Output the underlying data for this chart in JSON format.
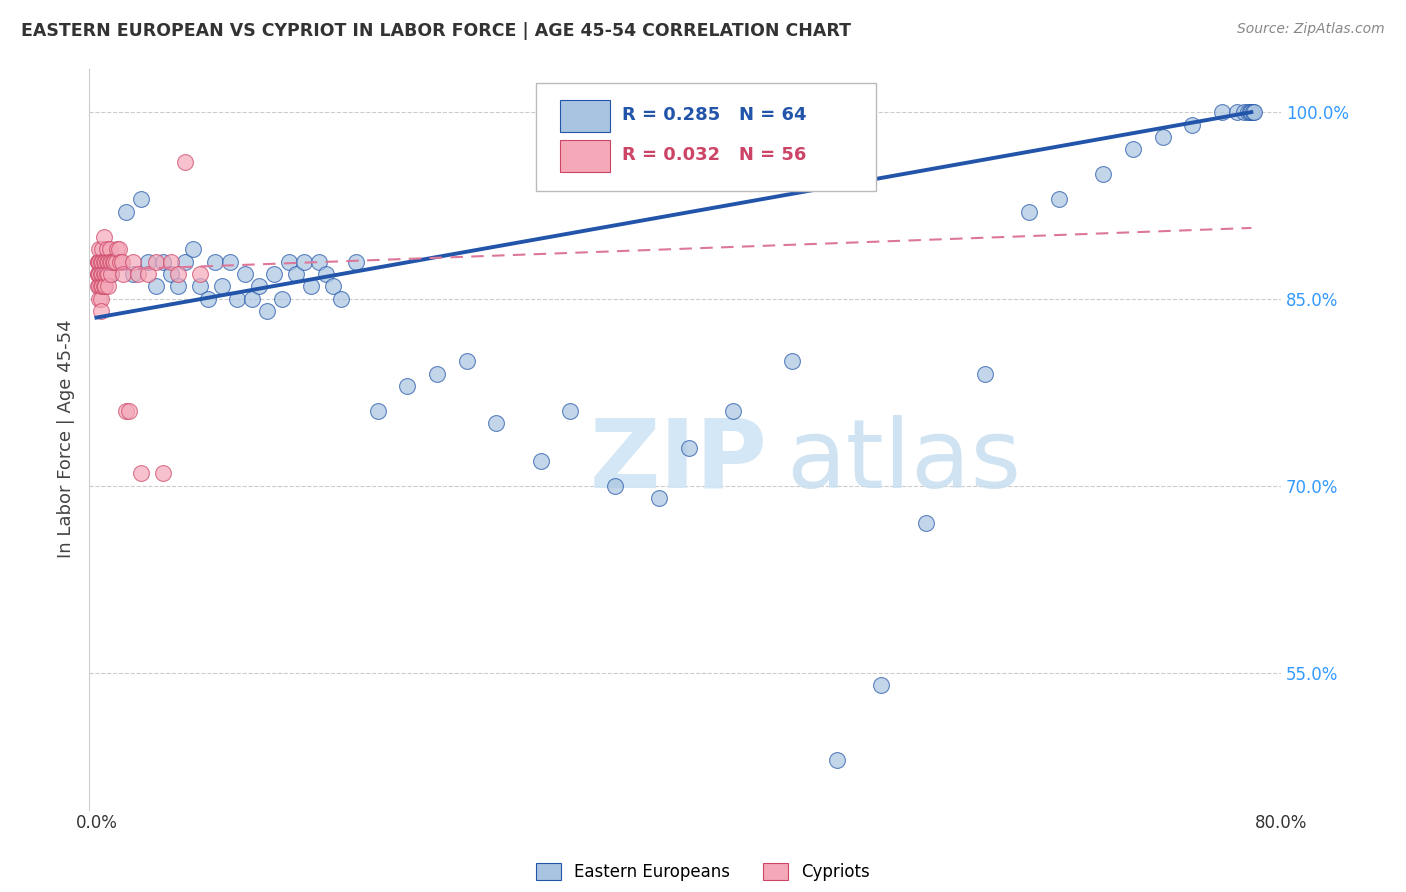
{
  "title": "EASTERN EUROPEAN VS CYPRIOT IN LABOR FORCE | AGE 45-54 CORRELATION CHART",
  "source": "Source: ZipAtlas.com",
  "ylabel": "In Labor Force | Age 45-54",
  "xlim": [
    -0.005,
    0.8
  ],
  "ylim": [
    0.44,
    1.035
  ],
  "yticks": [
    0.55,
    0.7,
    0.85,
    1.0
  ],
  "ytick_labels": [
    "55.0%",
    "70.0%",
    "85.0%",
    "100.0%"
  ],
  "xticks": [
    0.0,
    0.2,
    0.4,
    0.6,
    0.8
  ],
  "xtick_labels": [
    "0.0%",
    "",
    "",
    "",
    "80.0%"
  ],
  "blue_R": 0.285,
  "blue_N": 64,
  "pink_R": 0.032,
  "pink_N": 56,
  "blue_color": "#A8C4E0",
  "pink_color": "#F4A8B8",
  "trendline_blue": "#2255AA",
  "trendline_pink": "#DD7799",
  "legend_blue_label": "Eastern Europeans",
  "legend_pink_label": "Cypriots",
  "blue_trendline_x": [
    0.0,
    0.78
  ],
  "blue_trendline_y": [
    0.835,
    1.0
  ],
  "pink_trendline_x": [
    0.0,
    0.78
  ],
  "pink_trendline_y": [
    0.873,
    0.907
  ],
  "blue_x": [
    0.005,
    0.01,
    0.015,
    0.02,
    0.025,
    0.03,
    0.035,
    0.04,
    0.045,
    0.05,
    0.055,
    0.06,
    0.065,
    0.07,
    0.075,
    0.08,
    0.085,
    0.09,
    0.095,
    0.1,
    0.105,
    0.11,
    0.115,
    0.12,
    0.125,
    0.13,
    0.135,
    0.14,
    0.145,
    0.15,
    0.155,
    0.16,
    0.165,
    0.175,
    0.19,
    0.21,
    0.23,
    0.25,
    0.27,
    0.3,
    0.32,
    0.35,
    0.38,
    0.4,
    0.43,
    0.47,
    0.5,
    0.53,
    0.56,
    0.6,
    0.63,
    0.65,
    0.68,
    0.7,
    0.72,
    0.74,
    0.76,
    0.77,
    0.775,
    0.778,
    0.779,
    0.78,
    0.781,
    0.782
  ],
  "blue_y": [
    0.86,
    0.87,
    0.88,
    0.92,
    0.87,
    0.93,
    0.88,
    0.86,
    0.88,
    0.87,
    0.86,
    0.88,
    0.89,
    0.86,
    0.85,
    0.88,
    0.86,
    0.88,
    0.85,
    0.87,
    0.85,
    0.86,
    0.84,
    0.87,
    0.85,
    0.88,
    0.87,
    0.88,
    0.86,
    0.88,
    0.87,
    0.86,
    0.85,
    0.88,
    0.76,
    0.78,
    0.79,
    0.8,
    0.75,
    0.72,
    0.76,
    0.7,
    0.69,
    0.73,
    0.76,
    0.8,
    0.48,
    0.54,
    0.67,
    0.79,
    0.92,
    0.93,
    0.95,
    0.97,
    0.98,
    0.99,
    1.0,
    1.0,
    1.0,
    1.0,
    1.0,
    1.0,
    1.0,
    1.0
  ],
  "pink_x": [
    0.001,
    0.001,
    0.001,
    0.001,
    0.001,
    0.002,
    0.002,
    0.002,
    0.002,
    0.002,
    0.003,
    0.003,
    0.003,
    0.003,
    0.003,
    0.004,
    0.004,
    0.004,
    0.004,
    0.005,
    0.005,
    0.005,
    0.005,
    0.006,
    0.006,
    0.006,
    0.007,
    0.007,
    0.007,
    0.008,
    0.008,
    0.008,
    0.009,
    0.009,
    0.01,
    0.01,
    0.011,
    0.012,
    0.013,
    0.014,
    0.015,
    0.016,
    0.017,
    0.018,
    0.02,
    0.022,
    0.025,
    0.028,
    0.03,
    0.035,
    0.04,
    0.045,
    0.05,
    0.055,
    0.06,
    0.07
  ],
  "pink_y": [
    0.88,
    0.87,
    0.86,
    0.88,
    0.87,
    0.89,
    0.88,
    0.87,
    0.86,
    0.85,
    0.88,
    0.87,
    0.86,
    0.85,
    0.84,
    0.89,
    0.88,
    0.87,
    0.86,
    0.9,
    0.88,
    0.87,
    0.86,
    0.88,
    0.87,
    0.86,
    0.89,
    0.88,
    0.87,
    0.88,
    0.87,
    0.86,
    0.89,
    0.88,
    0.88,
    0.87,
    0.88,
    0.88,
    0.88,
    0.89,
    0.89,
    0.88,
    0.88,
    0.87,
    0.76,
    0.76,
    0.88,
    0.87,
    0.71,
    0.87,
    0.88,
    0.71,
    0.88,
    0.87,
    0.96,
    0.87
  ]
}
